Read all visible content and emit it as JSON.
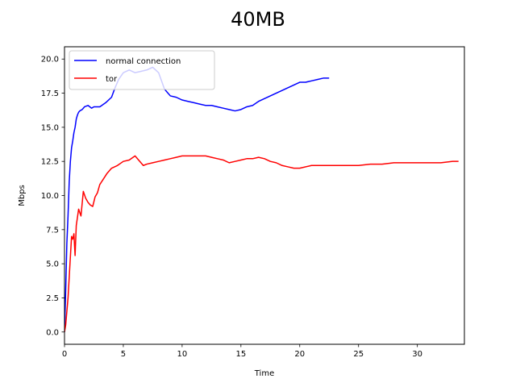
{
  "chart_data": {
    "type": "line",
    "title": "40MB",
    "xlabel": "Time",
    "ylabel": "Mbps",
    "xlim": [
      0,
      34
    ],
    "ylim": [
      -0.9,
      20.9
    ],
    "xticks": [
      0,
      5,
      10,
      15,
      20,
      25,
      30
    ],
    "yticks": [
      0.0,
      2.5,
      5.0,
      7.5,
      10.0,
      12.5,
      15.0,
      17.5,
      20.0
    ],
    "xtick_labels": [
      "0",
      "5",
      "10",
      "15",
      "20",
      "25",
      "30"
    ],
    "ytick_labels": [
      "0.0",
      "2.5",
      "5.0",
      "7.5",
      "10.0",
      "12.5",
      "15.0",
      "17.5",
      "20.0"
    ],
    "grid": false,
    "legend_position": "top-left",
    "series": [
      {
        "name": "normal connection",
        "color": "#0000ff",
        "x": [
          0,
          0.1,
          0.2,
          0.3,
          0.4,
          0.5,
          0.6,
          0.7,
          0.8,
          0.9,
          1.0,
          1.1,
          1.2,
          1.3,
          1.5,
          1.7,
          2.0,
          2.3,
          2.5,
          3.0,
          3.5,
          4.0,
          4.3,
          4.6,
          5.0,
          5.5,
          6.0,
          6.5,
          7.0,
          7.5,
          8.0,
          8.5,
          9.0,
          9.5,
          10.0,
          10.5,
          11.0,
          11.5,
          12.0,
          12.5,
          13.0,
          13.5,
          14.0,
          14.5,
          15.0,
          15.5,
          16.0,
          16.5,
          17.0,
          17.5,
          18.0,
          18.5,
          19.0,
          19.5,
          20.0,
          20.5,
          21.0,
          21.5,
          22.0,
          22.5
        ],
        "y": [
          0.0,
          3.0,
          6.5,
          8.5,
          11.0,
          12.5,
          13.5,
          14.0,
          14.6,
          15.0,
          15.6,
          15.9,
          16.1,
          16.2,
          16.3,
          16.5,
          16.6,
          16.4,
          16.5,
          16.5,
          16.8,
          17.2,
          17.9,
          18.5,
          19.0,
          19.2,
          19.0,
          19.1,
          19.2,
          19.4,
          19.0,
          17.8,
          17.3,
          17.2,
          17.0,
          16.9,
          16.8,
          16.7,
          16.6,
          16.6,
          16.5,
          16.4,
          16.3,
          16.2,
          16.3,
          16.5,
          16.6,
          16.9,
          17.1,
          17.3,
          17.5,
          17.7,
          17.9,
          18.1,
          18.3,
          18.3,
          18.4,
          18.5,
          18.6,
          18.6
        ]
      },
      {
        "name": "tor",
        "color": "#ff0000",
        "x": [
          0,
          0.1,
          0.2,
          0.3,
          0.4,
          0.5,
          0.6,
          0.7,
          0.8,
          0.9,
          1.0,
          1.2,
          1.4,
          1.6,
          1.8,
          2.0,
          2.2,
          2.4,
          2.6,
          2.8,
          3.0,
          3.3,
          3.6,
          4.0,
          4.5,
          5.0,
          5.5,
          6.0,
          6.3,
          6.7,
          7.0,
          7.5,
          8.0,
          8.5,
          9.0,
          9.5,
          10.0,
          10.5,
          11.0,
          11.5,
          12.0,
          12.5,
          13.0,
          13.5,
          14.0,
          14.5,
          15.0,
          15.5,
          16.0,
          16.5,
          17.0,
          17.5,
          18.0,
          18.5,
          19.0,
          19.5,
          20.0,
          21.0,
          22.0,
          23.0,
          24.0,
          25.0,
          26.0,
          27.0,
          28.0,
          29.0,
          30.0,
          31.0,
          32.0,
          33.0,
          33.5
        ],
        "y": [
          0.0,
          0.5,
          1.5,
          2.5,
          4.0,
          5.5,
          7.0,
          6.8,
          7.2,
          5.6,
          7.8,
          9.0,
          8.5,
          10.3,
          9.8,
          9.5,
          9.3,
          9.2,
          9.9,
          10.2,
          10.8,
          11.2,
          11.6,
          12.0,
          12.2,
          12.5,
          12.6,
          12.9,
          12.6,
          12.2,
          12.3,
          12.4,
          12.5,
          12.6,
          12.7,
          12.8,
          12.9,
          12.9,
          12.9,
          12.9,
          12.9,
          12.8,
          12.7,
          12.6,
          12.4,
          12.5,
          12.6,
          12.7,
          12.7,
          12.8,
          12.7,
          12.5,
          12.4,
          12.2,
          12.1,
          12.0,
          12.0,
          12.2,
          12.2,
          12.2,
          12.2,
          12.2,
          12.3,
          12.3,
          12.4,
          12.4,
          12.4,
          12.4,
          12.4,
          12.5,
          12.5
        ]
      }
    ]
  }
}
